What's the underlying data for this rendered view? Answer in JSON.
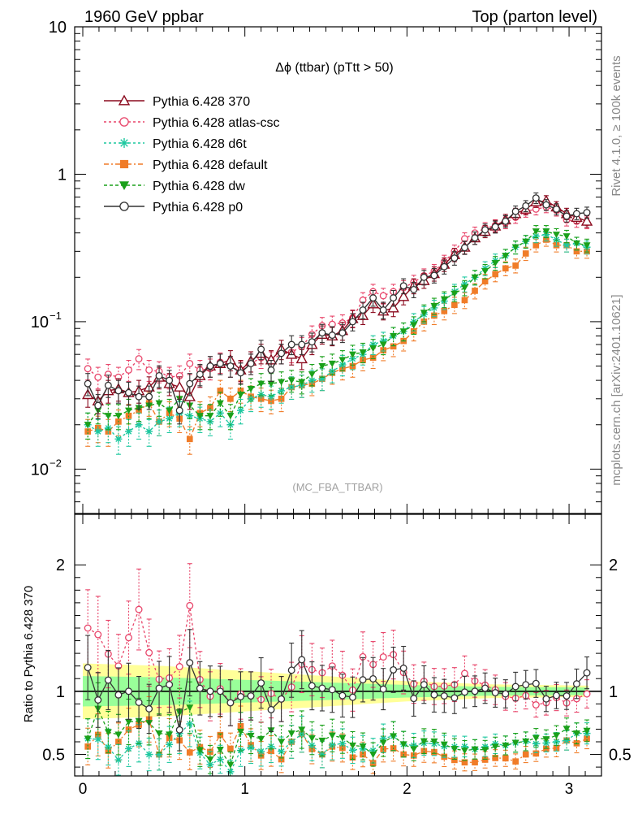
{
  "header": {
    "left": "1960 GeV ppbar",
    "right": "Top (parton level)"
  },
  "side_labels": {
    "rivet": "Rivet 4.1.0, ≥ 100k events",
    "mcplots": "mcplots.cern.ch [arXiv:2401.10621]"
  },
  "watermark": "(MC_FBA_TTBAR)",
  "chart_data": {
    "type": "line",
    "title": "Δϕ (ttbar) (pTtt > 50)",
    "yscale": "log",
    "xlim": [
      -0.05,
      3.2
    ],
    "ylim": [
      0.005,
      10
    ],
    "xticks": [
      0,
      1,
      2,
      3
    ],
    "main_ytick_labels": {
      "ten": "10",
      "one": "1",
      "tenth": "10",
      "tenth_exp": "−1",
      "hundredth": "10",
      "hundredth_exp": "−2"
    },
    "ratio": {
      "ylabel": "Ratio to Pythia 6.428 370",
      "ylim": [
        0.33,
        2.4
      ],
      "ticks": [
        "0.5",
        "1",
        "2"
      ],
      "band_half_width": {
        "x": [
          0,
          0.5,
          1.0,
          1.5,
          2.0,
          2.5,
          3.1
        ],
        "inner": [
          0.12,
          0.11,
          0.09,
          0.07,
          0.05,
          0.035,
          0.03
        ],
        "outer": [
          0.22,
          0.2,
          0.16,
          0.12,
          0.08,
          0.055,
          0.045
        ]
      }
    },
    "x": [
      0.031,
      0.094,
      0.157,
      0.22,
      0.283,
      0.346,
      0.409,
      0.471,
      0.534,
      0.597,
      0.66,
      0.723,
      0.786,
      0.848,
      0.911,
      0.974,
      1.037,
      1.1,
      1.162,
      1.225,
      1.288,
      1.351,
      1.414,
      1.477,
      1.539,
      1.602,
      1.665,
      1.728,
      1.791,
      1.854,
      1.916,
      1.979,
      2.042,
      2.105,
      2.168,
      2.23,
      2.293,
      2.356,
      2.419,
      2.482,
      2.545,
      2.608,
      2.67,
      2.733,
      2.796,
      2.859,
      2.922,
      2.985,
      3.047,
      3.11
    ],
    "series": [
      {
        "name": "Pythia 6.428 370",
        "color": "#8b0a1e",
        "dash": "solid",
        "marker": "triangle-open",
        "values": [
          0.032,
          0.029,
          0.034,
          0.035,
          0.033,
          0.034,
          0.036,
          0.042,
          0.038,
          0.036,
          0.031,
          0.043,
          0.05,
          0.052,
          0.055,
          0.047,
          0.054,
          0.061,
          0.055,
          0.065,
          0.06,
          0.056,
          0.07,
          0.082,
          0.08,
          0.087,
          0.105,
          0.11,
          0.132,
          0.118,
          0.124,
          0.148,
          0.175,
          0.19,
          0.212,
          0.245,
          0.285,
          0.32,
          0.37,
          0.41,
          0.445,
          0.49,
          0.54,
          0.58,
          0.65,
          0.66,
          0.6,
          0.54,
          0.51,
          0.48
        ]
      },
      {
        "name": "Pythia 6.428 atlas-csc",
        "color": "#e8456a",
        "dash": "3,3",
        "marker": "circle-open",
        "values": [
          0.048,
          0.042,
          0.044,
          0.042,
          0.047,
          0.056,
          0.047,
          0.046,
          0.042,
          0.043,
          0.052,
          0.047,
          0.048,
          0.053,
          0.05,
          0.046,
          0.052,
          0.057,
          0.054,
          0.061,
          0.062,
          0.068,
          0.082,
          0.094,
          0.096,
          0.098,
          0.106,
          0.14,
          0.16,
          0.15,
          0.16,
          0.17,
          0.185,
          0.205,
          0.22,
          0.255,
          0.3,
          0.365,
          0.4,
          0.43,
          0.45,
          0.47,
          0.51,
          0.56,
          0.58,
          0.6,
          0.57,
          0.49,
          0.48,
          0.47
        ]
      },
      {
        "name": "Pythia 6.428 d6t",
        "color": "#1ec8a0",
        "dash": "3,3",
        "marker": "star",
        "values": [
          0.02,
          0.018,
          0.019,
          0.016,
          0.018,
          0.02,
          0.018,
          0.021,
          0.022,
          0.024,
          0.023,
          0.022,
          0.021,
          0.024,
          0.02,
          0.025,
          0.03,
          0.032,
          0.031,
          0.034,
          0.036,
          0.037,
          0.04,
          0.041,
          0.046,
          0.051,
          0.056,
          0.06,
          0.07,
          0.074,
          0.08,
          0.086,
          0.1,
          0.112,
          0.124,
          0.138,
          0.16,
          0.18,
          0.2,
          0.23,
          0.26,
          0.28,
          0.32,
          0.35,
          0.38,
          0.39,
          0.36,
          0.33,
          0.34,
          0.32
        ]
      },
      {
        "name": "Pythia 6.428 default",
        "color": "#f07c28",
        "dash": "6,3,2,3",
        "marker": "square",
        "values": [
          0.018,
          0.019,
          0.018,
          0.021,
          0.023,
          0.025,
          0.028,
          0.021,
          0.024,
          0.022,
          0.016,
          0.024,
          0.026,
          0.034,
          0.03,
          0.034,
          0.031,
          0.03,
          0.029,
          0.03,
          0.036,
          0.037,
          0.038,
          0.041,
          0.045,
          0.048,
          0.05,
          0.055,
          0.057,
          0.064,
          0.068,
          0.074,
          0.086,
          0.1,
          0.11,
          0.118,
          0.13,
          0.14,
          0.162,
          0.188,
          0.21,
          0.23,
          0.24,
          0.29,
          0.33,
          0.36,
          0.33,
          0.33,
          0.3,
          0.3
        ]
      },
      {
        "name": "Pythia 6.428 dw",
        "color": "#1aa01a",
        "dash": "4,3",
        "marker": "triangle-down",
        "values": [
          0.02,
          0.025,
          0.023,
          0.023,
          0.025,
          0.026,
          0.027,
          0.028,
          0.025,
          0.03,
          0.027,
          0.023,
          0.023,
          0.028,
          0.023,
          0.032,
          0.035,
          0.038,
          0.038,
          0.039,
          0.04,
          0.039,
          0.044,
          0.05,
          0.052,
          0.055,
          0.06,
          0.062,
          0.066,
          0.07,
          0.08,
          0.086,
          0.095,
          0.115,
          0.128,
          0.142,
          0.155,
          0.17,
          0.2,
          0.22,
          0.25,
          0.28,
          0.32,
          0.35,
          0.41,
          0.41,
          0.39,
          0.38,
          0.34,
          0.33
        ]
      },
      {
        "name": "Pythia 6.428 p0",
        "color": "#333333",
        "dash": "solid",
        "marker": "circle-open",
        "values": [
          0.038,
          0.027,
          0.037,
          0.034,
          0.033,
          0.031,
          0.031,
          0.043,
          0.04,
          0.025,
          0.038,
          0.044,
          0.05,
          0.052,
          0.05,
          0.045,
          0.052,
          0.065,
          0.047,
          0.061,
          0.07,
          0.07,
          0.073,
          0.084,
          0.081,
          0.084,
          0.1,
          0.12,
          0.145,
          0.12,
          0.145,
          0.175,
          0.165,
          0.2,
          0.206,
          0.236,
          0.27,
          0.318,
          0.37,
          0.42,
          0.44,
          0.48,
          0.56,
          0.61,
          0.69,
          0.62,
          0.58,
          0.52,
          0.54,
          0.55
        ]
      }
    ]
  }
}
